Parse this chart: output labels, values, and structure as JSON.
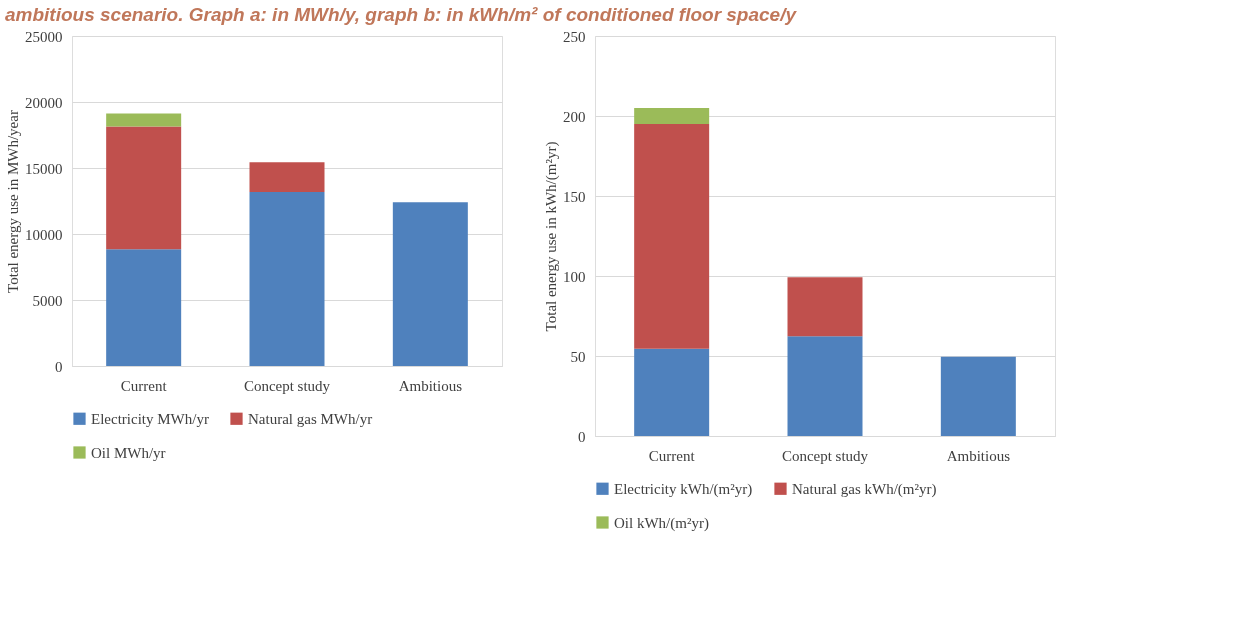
{
  "chart_data": [
    {
      "type": "bar",
      "stacked": true,
      "title": "ambitious scenario. Graph a: in MWh/y, graph b: in kWh/m² of conditioned floor space/y",
      "ylabel": "Total energy use in MWh/year",
      "categories": [
        "Current",
        "Concept study",
        "Ambitious"
      ],
      "series": [
        {
          "name": "Electricity MWh/yr",
          "color": "#4f81bd",
          "values": [
            8850,
            13180,
            12400
          ]
        },
        {
          "name": "Natural gas MWh/yr",
          "color": "#c0504d",
          "values": [
            9300,
            2260,
            null
          ]
        },
        {
          "name": "Oil MWh/yr",
          "color": "#9bbb59",
          "values": [
            970,
            null,
            null
          ]
        }
      ],
      "ylim": [
        0,
        25000
      ],
      "yticks": [
        0,
        5000,
        10000,
        15000,
        20000,
        25000
      ],
      "grid": "y",
      "legend": "bottom"
    },
    {
      "type": "bar",
      "stacked": true,
      "ylabel": "Total energy use in kWh/(m²yr)",
      "categories": [
        "Current",
        "Concept study",
        "Ambitious"
      ],
      "series": [
        {
          "name": "Electricity kWh/(m²yr)",
          "color": "#4f81bd",
          "values": [
            54.5,
            62.4,
            49.6
          ]
        },
        {
          "name": "Natural gas kWh/(m²yr)",
          "color": "#c0504d",
          "values": [
            140.5,
            36.8,
            null
          ]
        },
        {
          "name": "Oil kWh/(m²yr)",
          "color": "#9bbb59",
          "values": [
            10,
            null,
            null
          ]
        }
      ],
      "ylim": [
        0,
        250
      ],
      "yticks": [
        0,
        50,
        100,
        150,
        200,
        250
      ],
      "grid": "y",
      "legend": "bottom"
    }
  ]
}
